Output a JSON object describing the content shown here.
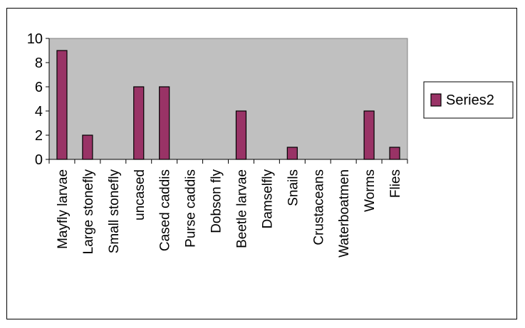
{
  "chart_data": {
    "type": "bar",
    "categories": [
      "Mayfly larvae",
      "Large stonefly",
      "Small stonefly",
      "uncased",
      "Cased caddis",
      "Purse caddis",
      "Dobson fly",
      "Beetle larvae",
      "Damselfly",
      "Snails",
      "Crustaceans",
      "Waterboatmen",
      "Worms",
      "Flies"
    ],
    "series": [
      {
        "name": "Series2",
        "values": [
          9,
          2,
          0,
          6,
          6,
          0,
          0,
          4,
          0,
          1,
          0,
          0,
          4,
          1
        ],
        "color": "#993366"
      }
    ],
    "ylim": [
      0,
      10
    ],
    "yticks": [
      0,
      2,
      4,
      6,
      8,
      10
    ],
    "plot_background": "#c0c0c0",
    "grid": false,
    "legend": "right"
  }
}
